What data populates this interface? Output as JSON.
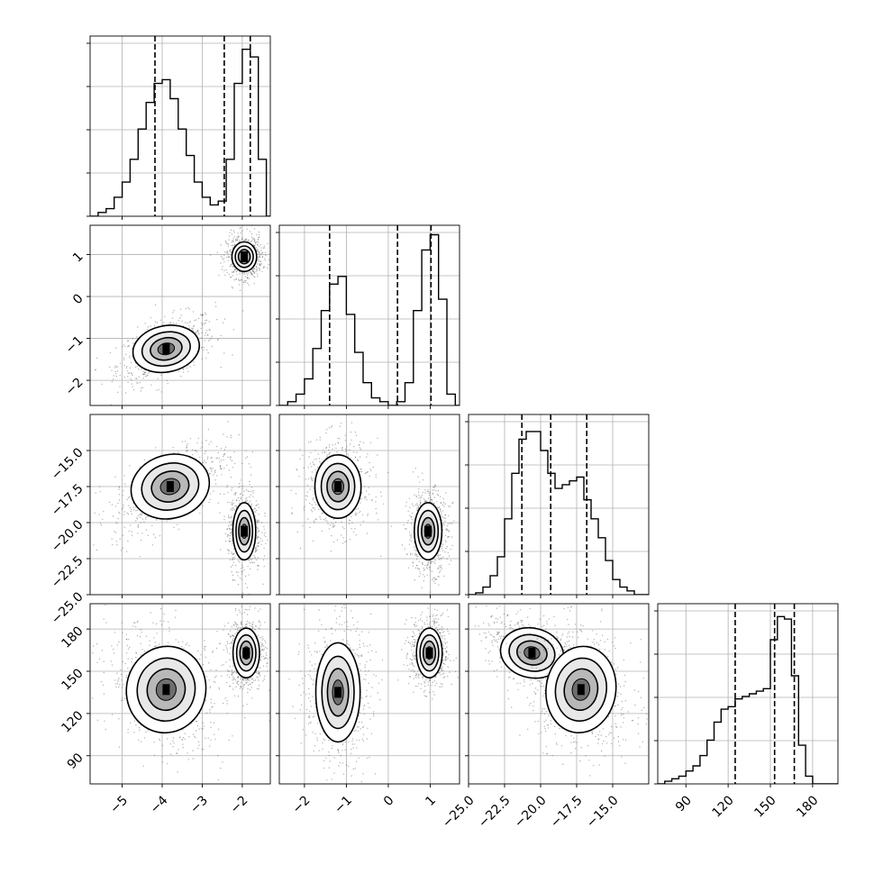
{
  "chart_data": {
    "type": "corner",
    "grid": true,
    "colors": {
      "line": "#000000",
      "grid": "#b0b0b0",
      "scatter": "#555555",
      "background": "#ffffff"
    },
    "panels": [
      {
        "row": 0,
        "col": 0,
        "type": "histogram",
        "xlim": [
          -5.8,
          -1.3
        ],
        "bin_edges": [
          -5.8,
          -5.6,
          -5.4,
          -5.2,
          -5.0,
          -4.8,
          -4.6,
          -4.4,
          -4.2,
          -4.0,
          -3.8,
          -3.6,
          -3.4,
          -3.2,
          -3.0,
          -2.8,
          -2.6,
          -2.4,
          -2.2,
          -2.0,
          -1.8,
          -1.6,
          -1.4,
          -1.3
        ],
        "counts": [
          0,
          2,
          4,
          10,
          18,
          30,
          46,
          60,
          70,
          72,
          62,
          46,
          32,
          18,
          10,
          6,
          8,
          30,
          70,
          88,
          84,
          30,
          0
        ],
        "ymax": 95,
        "quantiles": [
          -4.18,
          -2.45,
          -1.8
        ]
      },
      {
        "row": 1,
        "col": 0,
        "type": "2d",
        "x": {
          "mean": -3.9,
          "sd": 0.38
        },
        "y": {
          "mean": -1.25,
          "sd": 0.25
        },
        "rho": 0.5,
        "density": 3
      },
      {
        "row": 1,
        "col": 0,
        "type": "2d",
        "x": {
          "mean": -1.95,
          "sd": 0.14
        },
        "y": {
          "mean": 0.95,
          "sd": 0.16
        },
        "rho": 0.0,
        "density": 3
      },
      {
        "row": 1,
        "col": 1,
        "type": "histogram",
        "xlim": [
          -2.6,
          1.7
        ],
        "bin_edges": [
          -2.6,
          -2.4,
          -2.2,
          -2.0,
          -1.8,
          -1.6,
          -1.4,
          -1.2,
          -1.0,
          -0.8,
          -0.6,
          -0.4,
          -0.2,
          0.0,
          0.2,
          0.4,
          0.6,
          0.8,
          1.0,
          1.2,
          1.4,
          1.6,
          1.7
        ],
        "counts": [
          0,
          2,
          6,
          14,
          30,
          50,
          64,
          68,
          48,
          28,
          12,
          4,
          2,
          0,
          2,
          12,
          50,
          82,
          90,
          56,
          6,
          0
        ],
        "ymax": 95,
        "quantiles": [
          -1.4,
          0.22,
          1.02
        ]
      },
      {
        "row": 2,
        "col": 0,
        "type": "2d",
        "x": {
          "mean": -3.8,
          "sd": 0.45
        },
        "y": {
          "mean": -17.5,
          "sd": 1.0
        },
        "rho": 0.6,
        "density": 3
      },
      {
        "row": 2,
        "col": 0,
        "type": "2d",
        "x": {
          "mean": -1.95,
          "sd": 0.13
        },
        "y": {
          "mean": -20.6,
          "sd": 0.9
        },
        "rho": 0.0,
        "density": 3
      },
      {
        "row": 2,
        "col": 1,
        "type": "2d",
        "x": {
          "mean": -1.2,
          "sd": 0.25
        },
        "y": {
          "mean": -17.5,
          "sd": 1.0
        },
        "rho": 0.0,
        "density": 3
      },
      {
        "row": 2,
        "col": 1,
        "type": "2d",
        "x": {
          "mean": 0.95,
          "sd": 0.15
        },
        "y": {
          "mean": -20.6,
          "sd": 0.9
        },
        "rho": 0.0,
        "density": 3
      },
      {
        "row": 2,
        "col": 2,
        "type": "histogram",
        "xlim": [
          -25.0,
          -12.5
        ],
        "bin_edges": [
          -25.0,
          -24.5,
          -24.0,
          -23.5,
          -23.0,
          -22.5,
          -22.0,
          -21.5,
          -21.0,
          -20.5,
          -20.0,
          -19.5,
          -19.0,
          -18.5,
          -18.0,
          -17.5,
          -17.0,
          -16.5,
          -16.0,
          -15.5,
          -15.0,
          -14.5,
          -14.0,
          -13.5,
          -13.0,
          -12.5
        ],
        "counts": [
          0,
          1,
          4,
          10,
          20,
          40,
          64,
          82,
          86,
          86,
          76,
          64,
          56,
          58,
          60,
          62,
          50,
          40,
          30,
          18,
          8,
          4,
          2,
          0,
          0
        ],
        "ymax": 95,
        "quantiles": [
          -21.3,
          -19.3,
          -16.8
        ]
      },
      {
        "row": 3,
        "col": 0,
        "type": "2d",
        "x": {
          "mean": -3.9,
          "sd": 0.45
        },
        "y": {
          "mean": 137,
          "sd": 14
        },
        "rho": -0.3,
        "density": 3
      },
      {
        "row": 3,
        "col": 0,
        "type": "2d",
        "x": {
          "mean": -1.9,
          "sd": 0.15
        },
        "y": {
          "mean": 163,
          "sd": 8
        },
        "rho": 0.0,
        "density": 3
      },
      {
        "row": 3,
        "col": 1,
        "type": "2d",
        "x": {
          "mean": -1.2,
          "sd": 0.24
        },
        "y": {
          "mean": 135,
          "sd": 16
        },
        "rho": 0.0,
        "density": 3
      },
      {
        "row": 3,
        "col": 1,
        "type": "2d",
        "x": {
          "mean": 0.98,
          "sd": 0.14
        },
        "y": {
          "mean": 163,
          "sd": 8
        },
        "rho": 0.0,
        "density": 3
      },
      {
        "row": 3,
        "col": 2,
        "type": "2d",
        "x": {
          "mean": -20.6,
          "sd": 1.0
        },
        "y": {
          "mean": 163,
          "sd": 8
        },
        "rho": -0.5,
        "density": 3
      },
      {
        "row": 3,
        "col": 2,
        "type": "2d",
        "x": {
          "mean": -17.2,
          "sd": 1.1
        },
        "y": {
          "mean": 137,
          "sd": 14
        },
        "rho": -0.2,
        "density": 3
      },
      {
        "row": 3,
        "col": 3,
        "type": "histogram",
        "xlim": [
          70,
          198
        ],
        "bin_edges": [
          70,
          75,
          80,
          85,
          90,
          95,
          100,
          105,
          110,
          115,
          120,
          125,
          130,
          135,
          140,
          145,
          150,
          155,
          160,
          165,
          170,
          175,
          180,
          185,
          190,
          198
        ],
        "counts": [
          0,
          2,
          4,
          6,
          10,
          14,
          22,
          34,
          48,
          58,
          60,
          66,
          68,
          70,
          72,
          74,
          112,
          130,
          128,
          84,
          30,
          6,
          0,
          0,
          0
        ],
        "ymax": 140,
        "quantiles": [
          125,
          153,
          167
        ]
      }
    ],
    "axes": [
      {
        "col": 0,
        "lim": [
          -5.8,
          -1.3
        ],
        "ticks": [
          -5,
          -4,
          -3,
          -2
        ],
        "labels": [
          "−5",
          "−4",
          "−3",
          "−2"
        ]
      },
      {
        "col": 1,
        "lim": [
          -2.6,
          1.7
        ],
        "ticks": [
          -2,
          -1,
          0,
          1
        ],
        "labels": [
          "−2",
          "−1",
          "0",
          "1"
        ]
      },
      {
        "col": 2,
        "lim": [
          -25.0,
          -12.5
        ],
        "ticks": [
          -25.0,
          -22.5,
          -20.0,
          -17.5,
          -15.0
        ],
        "labels": [
          "−25.0",
          "−22.5",
          "−20.0",
          "−17.5",
          "−15.0"
        ]
      },
      {
        "col": 3,
        "lim": [
          70,
          198
        ],
        "ticks": [
          90,
          120,
          150,
          180
        ],
        "labels": [
          "90",
          "120",
          "150",
          "180"
        ]
      }
    ],
    "row_axes": [
      {
        "row": 1,
        "lim": [
          -2.6,
          1.7
        ],
        "ticks": [
          -2,
          -1,
          0,
          1
        ],
        "labels": [
          "−2",
          "−1",
          "0",
          "1"
        ]
      },
      {
        "row": 2,
        "lim": [
          -25.0,
          -12.5
        ],
        "ticks": [
          -25.0,
          -22.5,
          -20.0,
          -17.5,
          -15.0
        ],
        "labels": [
          "−25.0",
          "−22.5",
          "−20.0",
          "−17.5",
          "−15.0"
        ]
      },
      {
        "row": 3,
        "lim": [
          70,
          198
        ],
        "ticks": [
          90,
          120,
          150,
          180
        ],
        "labels": [
          "90",
          "120",
          "150",
          "180"
        ]
      }
    ]
  }
}
